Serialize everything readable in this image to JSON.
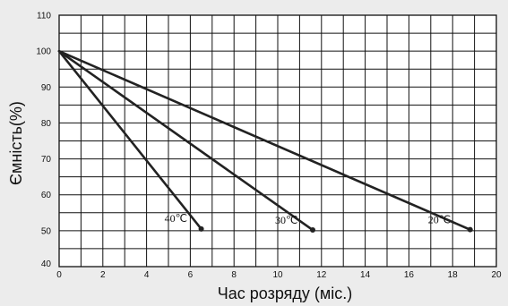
{
  "chart_data": {
    "type": "line",
    "title": "",
    "xlabel": "Час розряду (міс.)",
    "ylabel": "Ємність(%)",
    "xlim": [
      0,
      20
    ],
    "ylim": [
      40,
      110
    ],
    "x_ticks": [
      0,
      2,
      4,
      6,
      8,
      10,
      12,
      14,
      16,
      18,
      20
    ],
    "y_ticks": [
      40,
      50,
      60,
      70,
      80,
      90,
      100,
      110
    ],
    "grid": true,
    "legend": "none",
    "line_color": "#222222",
    "series": [
      {
        "name": "40℃",
        "x": [
          0,
          6.5
        ],
        "y": [
          100,
          50.5
        ]
      },
      {
        "name": "30℃",
        "x": [
          0,
          11.6
        ],
        "y": [
          100,
          50.2
        ]
      },
      {
        "name": "20℃",
        "x": [
          0,
          18.8
        ],
        "y": [
          100,
          50.3
        ]
      }
    ]
  }
}
